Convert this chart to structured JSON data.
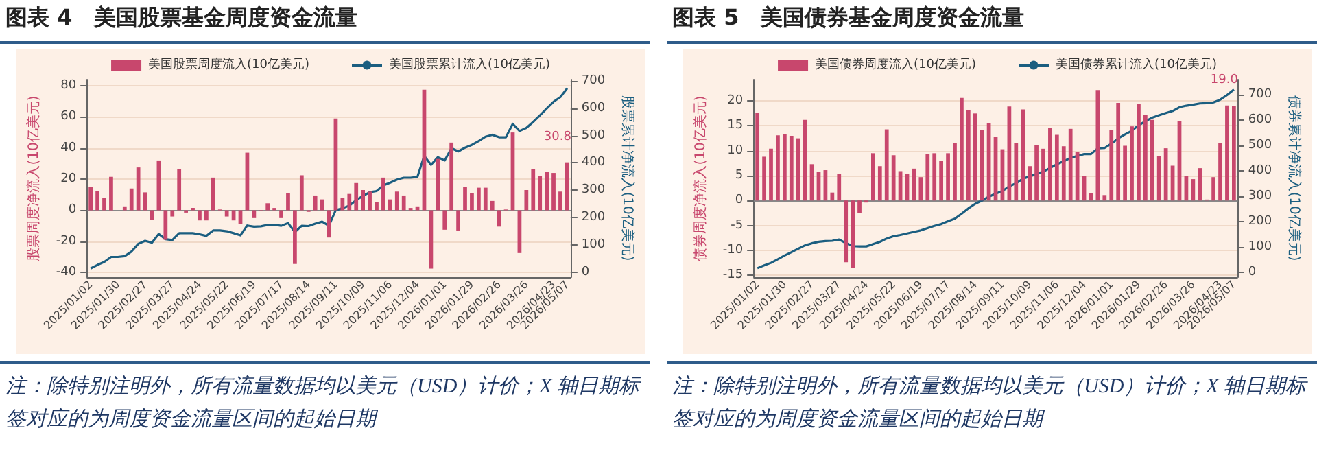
{
  "chart_data": [
    {
      "type": "bar",
      "title": "图表 4　美国股票基金周度资金流量",
      "ylabel": "股票周度净流入(10亿美元)",
      "y2label": "股票累计净流入(10亿美元)",
      "annotations": [
        "注：除特别注明外，所有流量数据均以美元（USD）计价；X 轴日期标签对应的为周度资金流量区间的起始日期"
      ],
      "categories": [
        "2025/01/02",
        null,
        null,
        null,
        "2025/01/30",
        null,
        null,
        null,
        "2025/02/27",
        null,
        null,
        null,
        "2025/03/27",
        null,
        null,
        null,
        "2025/04/24",
        null,
        null,
        null,
        "2025/05/22",
        null,
        null,
        null,
        "2025/06/19",
        null,
        null,
        null,
        "2025/07/17",
        null,
        null,
        null,
        "2025/08/14",
        null,
        null,
        null,
        "2025/09/11",
        null,
        null,
        null,
        "2025/10/09",
        null,
        null,
        null,
        "2025/11/06",
        null,
        null,
        null,
        "2025/12/04",
        null,
        null,
        null,
        "2026/01/01",
        null,
        null,
        null,
        "2026/01/29",
        null,
        null,
        null,
        "2026/02/26",
        null,
        null,
        null,
        "2026/03/26",
        null,
        null,
        null,
        "2026/04/23",
        null,
        "2026/05/07"
      ],
      "series": [
        {
          "name": "美国股票周度流入(10亿美元)",
          "color": "#c8476d",
          "values": [
            15,
            12.5,
            8,
            21.5,
            0,
            2.5,
            14,
            27.5,
            11.5,
            -6,
            32,
            -19,
            -4,
            26.5,
            -1.5,
            1.5,
            -6.5,
            -6.5,
            21,
            0.5,
            -4,
            -6.5,
            -9,
            37,
            -5,
            -0.5,
            4.5,
            1.5,
            -5,
            11,
            -34.5,
            22.5,
            -1,
            9.5,
            7,
            -17.5,
            59,
            8,
            10.5,
            17.5,
            13,
            12,
            5.5,
            21,
            7,
            12,
            9.5,
            1.5,
            2.5,
            77.5,
            -37.5,
            33,
            -12.5,
            43.5,
            -13,
            15,
            11,
            14.5,
            14.5,
            6,
            -10.5,
            0.5,
            50,
            -27.5,
            13,
            26.5,
            22,
            24.5,
            24,
            12,
            30.8
          ],
          "value_labels": [
            null,
            null,
            null,
            null,
            null,
            null,
            null,
            null,
            null,
            null,
            null,
            null,
            null,
            null,
            null,
            null,
            null,
            null,
            null,
            null,
            null,
            null,
            null,
            null,
            null,
            null,
            null,
            null,
            null,
            null,
            null,
            null,
            null,
            null,
            null,
            null,
            null,
            null,
            null,
            null,
            null,
            null,
            null,
            null,
            null,
            null,
            null,
            null,
            null,
            null,
            null,
            null,
            null,
            null,
            null,
            null,
            null,
            null,
            null,
            null,
            null,
            null,
            null,
            null,
            null,
            null,
            null,
            null,
            null,
            null,
            "30.8"
          ]
        },
        {
          "name": "美国股票累计流入(10亿美元)",
          "type": "line",
          "axis": "y2",
          "color": "#1b5e80",
          "values": [
            14,
            27,
            38,
            56,
            56,
            59,
            76,
            104,
            115,
            108,
            140,
            121,
            118,
            143,
            143,
            143,
            139,
            133,
            153,
            153,
            150,
            143,
            135,
            171,
            167,
            168,
            173,
            174,
            170,
            180,
            147,
            170,
            169,
            178,
            185,
            170,
            227,
            234,
            244,
            264,
            279,
            293,
            297,
            318,
            328,
            339,
            346,
            346,
            349,
            426,
            393,
            421,
            409,
            454,
            442,
            456,
            466,
            480,
            496,
            503,
            494,
            494,
            543,
            517,
            528,
            550,
            574,
            599,
            624,
            641,
            673
          ]
        }
      ],
      "ylim": [
        -43,
        84
      ],
      "yticks": [
        -40,
        -20,
        0,
        20,
        40,
        60,
        80
      ],
      "y2lim": [
        -18,
        705
      ],
      "y2ticks": [
        0,
        100,
        200,
        300,
        400,
        500,
        600,
        700
      ],
      "grid": "y",
      "legend": "top",
      "marker": "none"
    },
    {
      "type": "bar",
      "title": "图表 5　美国债券基金周度资金流量",
      "ylabel": "债券周度净流入(10亿美元)",
      "y2label": "债券累计净流入(10亿美元)",
      "annotations": [
        "注：除特别注明外，所有流量数据均以美元（USD）计价；X 轴日期标签对应的为周度资金流量区间的起始日期"
      ],
      "categories": [
        "2025/01/02",
        null,
        null,
        null,
        "2025/01/30",
        null,
        null,
        null,
        "2025/02/27",
        null,
        null,
        null,
        "2025/03/27",
        null,
        null,
        null,
        "2025/04/24",
        null,
        null,
        null,
        "2025/05/22",
        null,
        null,
        null,
        "2025/06/19",
        null,
        null,
        null,
        "2025/07/17",
        null,
        null,
        null,
        "2025/08/14",
        null,
        null,
        null,
        "2025/09/11",
        null,
        null,
        null,
        "2025/10/09",
        null,
        null,
        null,
        "2025/11/06",
        null,
        null,
        null,
        "2025/12/04",
        null,
        null,
        null,
        "2026/01/01",
        null,
        null,
        null,
        "2026/01/29",
        null,
        null,
        null,
        "2026/02/26",
        null,
        null,
        null,
        "2026/03/26",
        null,
        null,
        null,
        "2026/04/23",
        null,
        "2026/05/07"
      ],
      "series": [
        {
          "name": "美国债券周度流入(10亿美元)",
          "color": "#c8476d",
          "values": [
            17.7,
            8.8,
            10.4,
            13.1,
            13.4,
            13.0,
            12.5,
            16.2,
            7.3,
            5.8,
            6.1,
            1.6,
            5.3,
            -12.4,
            -13.5,
            -2.5,
            -0.4,
            9.5,
            6.9,
            14.3,
            9.1,
            5.9,
            5.4,
            6.4,
            4.7,
            9.4,
            9.5,
            7.9,
            9.5,
            11.6,
            20.6,
            18.2,
            17.5,
            14.1,
            15.5,
            12.8,
            10.3,
            18.9,
            11.5,
            18.3,
            6.9,
            11.1,
            10.4,
            14.6,
            13.2,
            10.9,
            14.4,
            9.8,
            5.0,
            1.5,
            22.2,
            1.1,
            14.1,
            19.6,
            11.0,
            14.9,
            19.4,
            17.2,
            16.2,
            8.9,
            10.5,
            7.0,
            15.9,
            5.0,
            4.3,
            6.5,
            0.2,
            4.7,
            11.5,
            19.1,
            19.0
          ],
          "value_labels": [
            null,
            null,
            null,
            null,
            null,
            null,
            null,
            null,
            null,
            null,
            null,
            null,
            null,
            null,
            null,
            null,
            null,
            null,
            null,
            null,
            null,
            null,
            null,
            null,
            null,
            null,
            null,
            null,
            null,
            null,
            null,
            null,
            null,
            null,
            null,
            null,
            null,
            null,
            null,
            null,
            null,
            null,
            null,
            null,
            null,
            null,
            null,
            null,
            null,
            null,
            null,
            null,
            null,
            null,
            null,
            null,
            null,
            null,
            null,
            null,
            null,
            null,
            null,
            null,
            null,
            null,
            null,
            null,
            null,
            null,
            "19.0"
          ]
        },
        {
          "name": "美国债券累计流入(10亿美元)",
          "type": "line",
          "axis": "y2",
          "color": "#1b5e80",
          "values": [
            16,
            27,
            37,
            51,
            66,
            79,
            93,
            106,
            114,
            120,
            123,
            124,
            129,
            115,
            103,
            102,
            102,
            111,
            120,
            133,
            142,
            147,
            153,
            159,
            165,
            174,
            183,
            190,
            201,
            211,
            231,
            252,
            270,
            283,
            298,
            310,
            320,
            339,
            351,
            369,
            378,
            388,
            397,
            411,
            426,
            438,
            451,
            459,
            466,
            466,
            489,
            490,
            507,
            528,
            544,
            558,
            580,
            595,
            610,
            619,
            628,
            636,
            651,
            657,
            661,
            666,
            667,
            670,
            681,
            699,
            721
          ]
        }
      ],
      "ylim": [
        -15.4,
        24.3
      ],
      "yticks": [
        -15,
        -10,
        -5,
        0,
        5,
        10,
        15,
        20
      ],
      "y2lim": [
        -19.5,
        760
      ],
      "y2ticks": [
        0,
        100,
        200,
        300,
        400,
        500,
        600,
        700
      ],
      "grid": "y",
      "legend": "top",
      "marker": "none"
    }
  ]
}
